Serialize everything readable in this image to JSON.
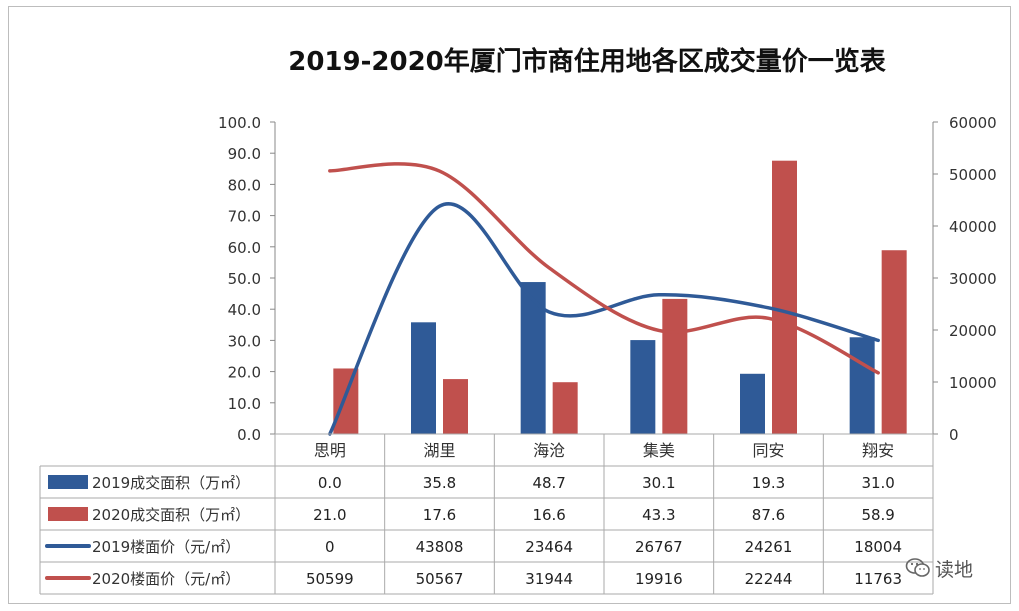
{
  "chart_data": {
    "type": "bar",
    "title": "2019-2020年厦门市商住用地各区成交量价一览表",
    "categories": [
      "思明",
      "湖里",
      "海沧",
      "集美",
      "同安",
      "翔安"
    ],
    "y_left": {
      "ylim": [
        0,
        100
      ],
      "ticks": [
        "100.0",
        "90.0",
        "80.0",
        "70.0",
        "60.0",
        "50.0",
        "40.0",
        "30.0",
        "20.0",
        "10.0",
        "0.0"
      ]
    },
    "y_right": {
      "ylim": [
        0,
        60000
      ],
      "ticks": [
        "60000",
        "50000",
        "40000",
        "30000",
        "20000",
        "10000",
        "0"
      ]
    },
    "grid": false,
    "legend": "data table below",
    "series": [
      {
        "name": "2019成交面积（万㎡）",
        "kind": "bar",
        "axis": "left",
        "color": "#2f5a97",
        "values": [
          0.0,
          35.8,
          48.7,
          30.1,
          19.3,
          31.0
        ],
        "labels": [
          "0.0",
          "35.8",
          "48.7",
          "30.1",
          "19.3",
          "31.0"
        ]
      },
      {
        "name": "2020成交面积（万㎡）",
        "kind": "bar",
        "axis": "left",
        "color": "#c0504d",
        "values": [
          21.0,
          17.6,
          16.6,
          43.3,
          87.6,
          58.9
        ],
        "labels": [
          "21.0",
          "17.6",
          "16.6",
          "43.3",
          "87.6",
          "58.9"
        ]
      },
      {
        "name": "2019楼面价（元/㎡）",
        "kind": "line",
        "axis": "right",
        "color": "#2f5a97",
        "values": [
          0,
          43808,
          23464,
          26767,
          24261,
          18004
        ],
        "labels": [
          "0",
          "43808",
          "23464",
          "26767",
          "24261",
          "18004"
        ]
      },
      {
        "name": "2020楼面价（元/㎡）",
        "kind": "line",
        "axis": "right",
        "color": "#c0504d",
        "values": [
          50599,
          50567,
          31944,
          19916,
          22244,
          11763
        ],
        "labels": [
          "50599",
          "50567",
          "31944",
          "19916",
          "22244",
          "11763"
        ]
      }
    ]
  },
  "watermark": {
    "icon": "wechat-icon",
    "text": "读地"
  }
}
